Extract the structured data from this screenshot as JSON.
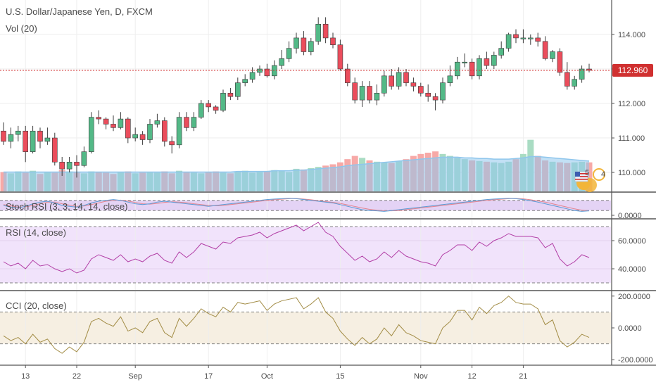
{
  "chart_data": {
    "type": "candlestick",
    "title": "U.S. Dollar/Japanese Yen, D, FXCM",
    "volume_label": "Vol (20)",
    "last_price": 112.96,
    "last_price_label": "112.960",
    "colors": {
      "up": "#53b987",
      "down": "#eb4d5c",
      "up_vol": "#a9dcc3",
      "down_vol": "#f7a9a7",
      "vol_ma": "#8fc6ec",
      "last_line": "#d03030",
      "rsi_line": "#b23ea6",
      "cci_line": "#a28c45",
      "stoch_k": "#5b9bd5",
      "stoch_d": "#e5838e"
    },
    "price_axis": {
      "ylim": [
        109.45,
        115.0
      ],
      "ticks": [
        110.0,
        111.0,
        112.0,
        113.0,
        114.0
      ],
      "tick_labels": [
        "110.000",
        "111.000",
        "112.000",
        "113.000",
        "114.000"
      ]
    },
    "x_axis": {
      "tick_labels": [
        "13",
        "22",
        "Sep",
        "17",
        "Oct",
        "15",
        "Nov",
        "12",
        "21"
      ],
      "tick_index": [
        3,
        10,
        18,
        28,
        36,
        46,
        57,
        64,
        71
      ]
    },
    "candles": {
      "open": [
        111.2,
        110.9,
        111.1,
        111.2,
        110.6,
        111.2,
        110.9,
        111.0,
        110.3,
        110.1,
        110.3,
        110.2,
        110.6,
        111.6,
        111.55,
        111.4,
        111.3,
        111.55,
        111.0,
        111.1,
        110.95,
        111.4,
        111.5,
        110.9,
        110.8,
        111.6,
        111.3,
        111.6,
        112.0,
        111.9,
        111.8,
        112.3,
        112.2,
        112.6,
        112.7,
        112.9,
        113.0,
        112.8,
        113.1,
        113.3,
        113.6,
        113.9,
        113.5,
        113.8,
        114.3,
        113.9,
        113.7,
        113.0,
        112.6,
        112.1,
        112.5,
        112.1,
        112.3,
        112.8,
        112.5,
        112.9,
        112.6,
        112.5,
        112.3,
        112.2,
        112.1,
        112.6,
        112.8,
        113.2,
        113.2,
        112.8,
        113.3,
        113.1,
        113.4,
        113.6,
        114.0,
        113.9,
        113.9,
        113.9,
        113.8,
        113.3,
        113.5,
        112.9,
        112.5,
        112.7,
        113.0
      ],
      "close": [
        110.9,
        111.1,
        111.2,
        110.6,
        111.2,
        110.9,
        111.0,
        110.3,
        110.1,
        110.3,
        110.2,
        110.6,
        111.6,
        111.55,
        111.4,
        111.3,
        111.55,
        111.0,
        111.1,
        110.95,
        111.4,
        111.5,
        110.9,
        110.8,
        111.6,
        111.3,
        111.6,
        112.0,
        111.9,
        111.8,
        112.3,
        112.2,
        112.6,
        112.7,
        112.9,
        113.0,
        112.8,
        113.1,
        113.3,
        113.6,
        113.9,
        113.5,
        113.8,
        114.3,
        113.9,
        113.7,
        113.0,
        112.6,
        112.1,
        112.5,
        112.1,
        112.3,
        112.8,
        112.5,
        112.9,
        112.6,
        112.5,
        112.3,
        112.2,
        112.1,
        112.6,
        112.8,
        113.2,
        113.2,
        112.8,
        113.3,
        113.1,
        113.4,
        113.6,
        114.0,
        113.9,
        113.9,
        113.9,
        113.8,
        113.3,
        113.5,
        112.9,
        112.5,
        112.7,
        113.0,
        112.96
      ],
      "high": [
        111.45,
        111.3,
        111.35,
        111.35,
        111.35,
        111.3,
        111.3,
        111.15,
        110.45,
        110.45,
        110.5,
        110.75,
        111.75,
        111.8,
        111.6,
        111.65,
        111.75,
        111.6,
        111.3,
        111.2,
        111.55,
        111.7,
        111.6,
        111.05,
        111.75,
        111.75,
        111.75,
        112.1,
        112.1,
        111.95,
        112.4,
        112.45,
        112.75,
        112.85,
        113.05,
        113.1,
        113.15,
        113.25,
        113.55,
        113.8,
        114.05,
        114.1,
        113.9,
        114.5,
        114.5,
        114.05,
        113.85,
        113.15,
        112.75,
        112.65,
        112.65,
        112.55,
        112.95,
        113.0,
        113.05,
        113.0,
        112.75,
        112.6,
        112.55,
        112.3,
        112.75,
        113.1,
        113.35,
        113.45,
        113.3,
        113.4,
        113.5,
        113.5,
        113.8,
        114.05,
        114.15,
        114.15,
        114.0,
        114.05,
        113.95,
        113.55,
        113.6,
        113.2,
        112.8,
        113.1,
        113.15
      ],
      "high_note": [],
      "low": [
        110.8,
        110.7,
        110.9,
        110.3,
        110.55,
        110.7,
        110.8,
        110.2,
        109.9,
        110.0,
        109.85,
        110.15,
        110.55,
        111.4,
        111.25,
        111.2,
        111.25,
        110.85,
        110.9,
        110.8,
        110.85,
        111.3,
        110.75,
        110.55,
        110.7,
        111.2,
        111.2,
        111.55,
        111.75,
        111.7,
        111.75,
        112.1,
        112.1,
        112.5,
        112.6,
        112.8,
        112.75,
        112.7,
        113.0,
        113.2,
        113.45,
        113.4,
        113.4,
        113.7,
        113.75,
        113.6,
        112.95,
        112.5,
        112.0,
        111.9,
        112.0,
        111.95,
        112.2,
        112.4,
        112.4,
        112.5,
        112.35,
        112.2,
        112.05,
        111.8,
        112.0,
        112.5,
        112.7,
        113.05,
        112.7,
        112.7,
        113.0,
        113.0,
        113.3,
        113.5,
        113.75,
        113.75,
        113.7,
        113.65,
        113.25,
        113.2,
        112.8,
        112.4,
        112.4,
        112.6,
        112.9
      ]
    },
    "volume": {
      "values": [
        30,
        28,
        31,
        29,
        32,
        27,
        30,
        29,
        33,
        31,
        30,
        28,
        31,
        30,
        29,
        27,
        30,
        31,
        28,
        29,
        30,
        29,
        31,
        28,
        32,
        30,
        29,
        28,
        30,
        31,
        29,
        28,
        30,
        32,
        29,
        30,
        31,
        33,
        32,
        30,
        35,
        34,
        36,
        38,
        40,
        42,
        45,
        50,
        55,
        52,
        48,
        46,
        45,
        44,
        47,
        50,
        55,
        58,
        60,
        62,
        58,
        55,
        52,
        50,
        48,
        47,
        46,
        45,
        44,
        46,
        50,
        58,
        80,
        55,
        48,
        46,
        45,
        44,
        45,
        46,
        45
      ],
      "max": 120,
      "ma": [
        30,
        30,
        30,
        30,
        30,
        30,
        30,
        30,
        30,
        30,
        30,
        30,
        30,
        30,
        30,
        30,
        30,
        30,
        30,
        30,
        30,
        30,
        30,
        30,
        30,
        30,
        30,
        30,
        30,
        30,
        30,
        30,
        31,
        31,
        31,
        31,
        31,
        32,
        32,
        32,
        33,
        33,
        34,
        35,
        36,
        37,
        38,
        40,
        41,
        42,
        43,
        44,
        45,
        46,
        47,
        48,
        49,
        50,
        51,
        52,
        53,
        53,
        53,
        52,
        52,
        51,
        51,
        50,
        50,
        50,
        51,
        52,
        54,
        54,
        53,
        52,
        51,
        50,
        49,
        48,
        47
      ]
    },
    "stoch_rsi": {
      "label": "Stoch RSI (3, 3, 14, 14, close)",
      "tick_label": "0.0000",
      "levels": [
        80,
        20
      ],
      "k": [
        50,
        40,
        35,
        45,
        60,
        70,
        75,
        65,
        50,
        45,
        40,
        50,
        65,
        75,
        80,
        85,
        80,
        70,
        60,
        55,
        60,
        70,
        75,
        70,
        65,
        60,
        55,
        50,
        45,
        50,
        55,
        60,
        65,
        70,
        75,
        80,
        85,
        88,
        90,
        92,
        90,
        85,
        80,
        75,
        70,
        65,
        55,
        45,
        35,
        25,
        20,
        18,
        15,
        20,
        25,
        30,
        35,
        40,
        45,
        50,
        55,
        60,
        65,
        70,
        75,
        80,
        85,
        88,
        90,
        92,
        90,
        85,
        78,
        70,
        60,
        50,
        40,
        30,
        20,
        15,
        18
      ],
      "d": [
        55,
        48,
        40,
        42,
        50,
        60,
        70,
        70,
        60,
        52,
        45,
        47,
        55,
        65,
        75,
        80,
        82,
        76,
        68,
        60,
        58,
        62,
        68,
        72,
        70,
        66,
        60,
        55,
        50,
        48,
        50,
        55,
        60,
        65,
        70,
        75,
        80,
        84,
        87,
        90,
        91,
        88,
        84,
        78,
        73,
        68,
        62,
        53,
        44,
        35,
        27,
        22,
        18,
        18,
        20,
        25,
        30,
        35,
        40,
        45,
        50,
        55,
        60,
        65,
        70,
        75,
        80,
        84,
        87,
        90,
        91,
        89,
        84,
        77,
        70,
        60,
        50,
        40,
        30,
        22,
        18
      ]
    },
    "rsi": {
      "label": "RSI (14, close)",
      "ylim": [
        25,
        75
      ],
      "levels": [
        70,
        30
      ],
      "ticks": [
        40,
        60
      ],
      "tick_labels": [
        "40.0000",
        "60.0000"
      ],
      "values": [
        45,
        42,
        44,
        40,
        46,
        42,
        43,
        40,
        38,
        40,
        37,
        39,
        47,
        50,
        48,
        46,
        50,
        45,
        47,
        45,
        49,
        51,
        46,
        44,
        52,
        48,
        52,
        58,
        56,
        54,
        59,
        58,
        62,
        63,
        64,
        66,
        62,
        65,
        67,
        69,
        71,
        67,
        70,
        73,
        66,
        63,
        56,
        51,
        46,
        49,
        45,
        47,
        52,
        48,
        53,
        49,
        47,
        45,
        44,
        42,
        50,
        53,
        57,
        57,
        53,
        59,
        56,
        60,
        62,
        65,
        63,
        63,
        63,
        62,
        55,
        58,
        47,
        42,
        45,
        50,
        48
      ]
    },
    "cci": {
      "label": "CCI (20, close)",
      "ylim": [
        -230,
        230
      ],
      "levels": [
        100,
        -100
      ],
      "ticks": [
        200,
        0,
        -200
      ],
      "tick_labels": [
        "200.0000",
        "0.0000",
        "-200.0000"
      ],
      "values": [
        -50,
        -80,
        -60,
        -100,
        -40,
        -90,
        -70,
        -130,
        -160,
        -120,
        -150,
        -90,
        40,
        60,
        30,
        10,
        70,
        -20,
        0,
        -30,
        40,
        60,
        -30,
        -60,
        60,
        10,
        60,
        120,
        90,
        70,
        130,
        100,
        160,
        150,
        160,
        170,
        110,
        150,
        170,
        180,
        190,
        120,
        150,
        190,
        100,
        60,
        -20,
        -70,
        -110,
        -60,
        -100,
        -70,
        0,
        -50,
        20,
        -30,
        -50,
        -80,
        -90,
        -100,
        0,
        40,
        110,
        110,
        50,
        130,
        90,
        140,
        160,
        200,
        160,
        150,
        150,
        120,
        20,
        50,
        -80,
        -120,
        -90,
        -40,
        -60
      ]
    }
  }
}
